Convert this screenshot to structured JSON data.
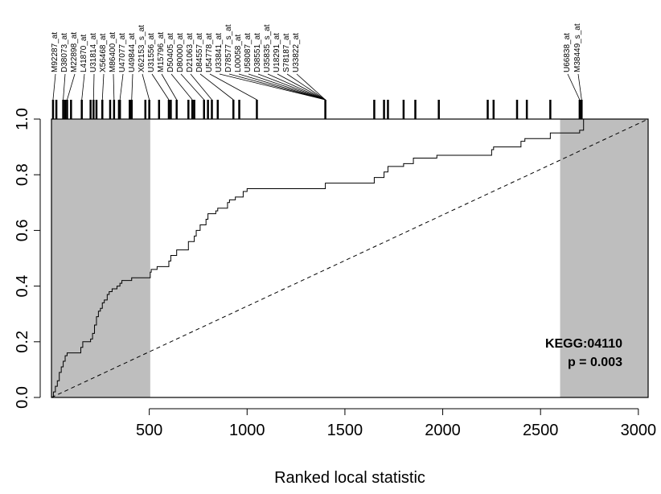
{
  "chart_data": {
    "type": "line",
    "title": "",
    "xlabel": "Ranked local statistic",
    "ylabel": "",
    "xlim": [
      0,
      3050
    ],
    "ylim": [
      0,
      1
    ],
    "x_ticks": [
      500,
      1000,
      1500,
      2000,
      2500,
      3000
    ],
    "y_ticks": [
      0.0,
      0.2,
      0.4,
      0.6,
      0.8,
      1.0
    ],
    "x_tick_labels": [
      "500",
      "1000",
      "1500",
      "2000",
      "2500",
      "3000"
    ],
    "y_tick_labels": [
      "0.0",
      "0.2",
      "0.4",
      "0.6",
      "0.8",
      "1.0"
    ],
    "shaded_regions": [
      [
        0,
        505
      ],
      [
        2600,
        3050
      ]
    ],
    "shade_color": "#bebebe",
    "annotation": {
      "line1": "KEGG:04110",
      "line2": "p = 0.003"
    },
    "series": [
      {
        "style": "solid-step",
        "x": [
          0,
          10,
          20,
          30,
          40,
          50,
          60,
          70,
          80,
          90,
          100,
          150,
          160,
          200,
          210,
          220,
          230,
          240,
          250,
          260,
          270,
          285,
          295,
          310,
          320,
          335,
          350,
          360,
          400,
          410,
          505,
          510,
          540,
          600,
          610,
          640,
          700,
          730,
          740,
          760,
          790,
          800,
          840,
          850,
          900,
          910,
          940,
          980,
          1000,
          1050,
          1400,
          1650,
          1700,
          1720,
          1800,
          1850,
          1970,
          2250,
          2260,
          2400,
          2420,
          2550,
          2700,
          2720
        ],
        "y": [
          0.0,
          0.02,
          0.04,
          0.06,
          0.09,
          0.11,
          0.13,
          0.15,
          0.16,
          0.16,
          0.16,
          0.18,
          0.2,
          0.21,
          0.23,
          0.26,
          0.29,
          0.31,
          0.32,
          0.34,
          0.35,
          0.37,
          0.38,
          0.39,
          0.39,
          0.4,
          0.41,
          0.42,
          0.42,
          0.43,
          0.45,
          0.46,
          0.47,
          0.49,
          0.51,
          0.53,
          0.56,
          0.58,
          0.6,
          0.62,
          0.64,
          0.66,
          0.67,
          0.68,
          0.7,
          0.71,
          0.72,
          0.74,
          0.75,
          0.75,
          0.77,
          0.79,
          0.81,
          0.83,
          0.84,
          0.86,
          0.87,
          0.89,
          0.9,
          0.92,
          0.93,
          0.95,
          0.96,
          1.0
        ]
      },
      {
        "style": "dashed",
        "x": [
          0,
          3050
        ],
        "y": [
          0.0,
          1.0
        ]
      }
    ],
    "rug": {
      "positions": [
        8,
        25,
        60,
        70,
        80,
        100,
        155,
        200,
        215,
        230,
        260,
        300,
        320,
        345,
        350,
        400,
        410,
        480,
        500,
        550,
        600,
        610,
        640,
        700,
        720,
        730,
        780,
        800,
        820,
        850,
        930,
        960,
        1050,
        1400,
        1650,
        1700,
        1720,
        1800,
        1860,
        1980,
        2230,
        2260,
        2380,
        2430,
        2550,
        2700,
        2710
      ],
      "labels": [
        "M92287_at",
        "D38073_at",
        "M22898_at",
        "L41870_at",
        "U31814_at",
        "X56468_at",
        "M86400_at",
        "U47077_at",
        "U49844_at",
        "X62153_s_at",
        "U31556_at",
        "M15796_at",
        "D50405_at",
        "D80000_at",
        "D21063_at",
        "D84557_at",
        "U54778_at",
        "U33841_at",
        "D78577_s_at",
        "L00058_at",
        "U58087_at",
        "D38551_at",
        "U35835_s_at",
        "U18291_at",
        "S78187_at",
        "U33822_at",
        "U66838_at",
        "M38449_s_at"
      ]
    }
  }
}
